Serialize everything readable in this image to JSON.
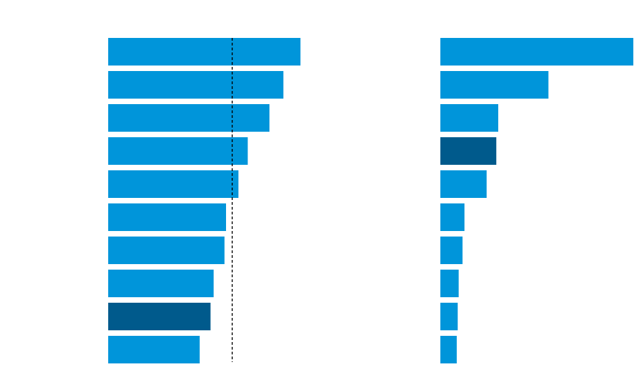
{
  "chart_data": [
    {
      "type": "bar",
      "orientation": "horizontal",
      "title": "",
      "xlabel": "",
      "ylabel": "",
      "grid": false,
      "xlim": [
        0,
        100
      ],
      "values": [
        62,
        56.5,
        52,
        45,
        42,
        38,
        37.5,
        34,
        33,
        29.5
      ],
      "highlight_index": 8,
      "reference_line": {
        "value": 40,
        "style": "dashed"
      }
    },
    {
      "type": "bar",
      "orientation": "horizontal",
      "title": "",
      "xlabel": "",
      "ylabel": "",
      "grid": false,
      "xlim": [
        0,
        100
      ],
      "values": [
        100,
        56,
        30,
        29,
        24,
        12.5,
        11.5,
        9.5,
        9,
        8.5
      ],
      "highlight_index": 3
    }
  ],
  "colors": {
    "bar": "#0095DA",
    "highlight": "#005A8C",
    "reference_line": "#000000"
  }
}
